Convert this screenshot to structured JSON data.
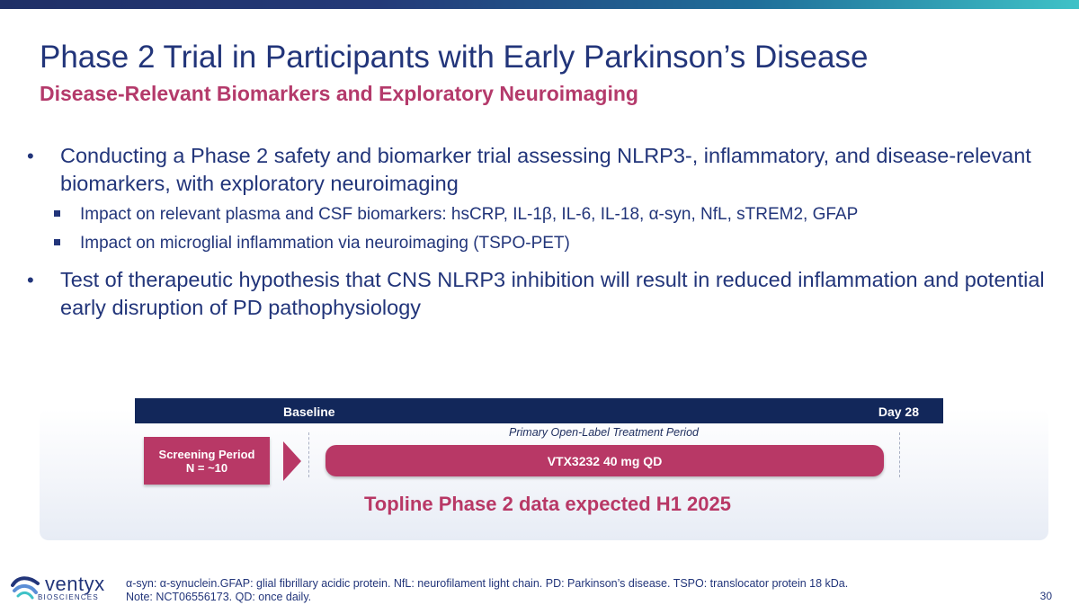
{
  "header": {
    "title": "Phase 2 Trial in Participants with Early Parkinson’s Disease",
    "subtitle": "Disease-Relevant Biomarkers and Exploratory Neuroimaging"
  },
  "bullets": [
    {
      "text": "Conducting a Phase 2 safety and biomarker trial assessing NLRP3-, inflammatory, and disease-relevant biomarkers, with exploratory neuroimaging",
      "sub": [
        "Impact on relevant plasma and CSF biomarkers: hsCRP, IL-1β, IL-6, IL-18, α-syn, NfL, sTREM2, GFAP",
        "Impact on microglial inflammation via neuroimaging (TSPO-PET)"
      ]
    },
    {
      "text": "Test of therapeutic hypothesis that CNS NLRP3 inhibition will result in reduced inflammation and potential early disruption of PD pathophysiology"
    }
  ],
  "bullet_glyph": "•",
  "diagram": {
    "baseline_label": "Baseline",
    "day_label": "Day 28",
    "period_label": "Primary Open-Label Treatment Period",
    "screening_line1": "Screening Period",
    "screening_line2": "N = ~10",
    "treatment_label": "VTX3232 40 mg QD",
    "topline": "Topline Phase 2 data expected H1 2025"
  },
  "footer": {
    "logo_word": "ventyx",
    "logo_sub": "BIOSCIENCES",
    "footnote_line1": "α-syn:  α-synuclein.GFAP: glial fibrillary acidic protein. NfL: neurofilament light chain. PD: Parkinson’s disease. TSPO: translocator protein 18 kDa.",
    "footnote_line2": "Note: NCT06556173. QD: once daily.",
    "page_number": "30"
  },
  "colors": {
    "navy": "#22357a",
    "magenta": "#b83866",
    "dark_bar": "#12275a"
  }
}
